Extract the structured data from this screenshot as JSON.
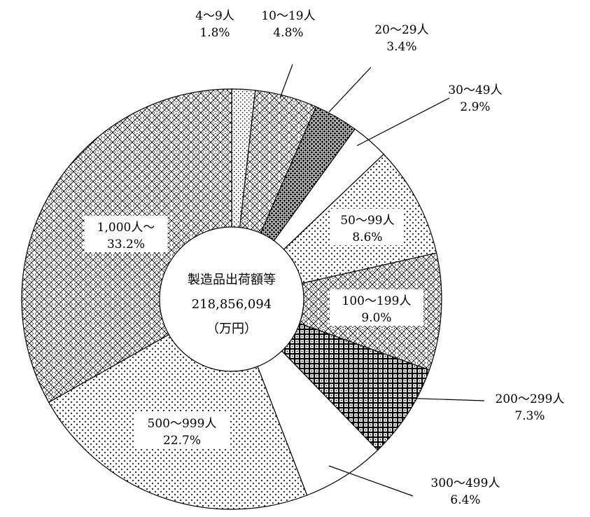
{
  "chart_data": {
    "type": "pie",
    "variant": "donut",
    "center_label": {
      "title": "製造品出荷額等",
      "value": "218,856,094",
      "unit": "（万円）"
    },
    "slices": [
      {
        "name": "4～9人",
        "value": 1.8,
        "label": "1.8%",
        "pattern": "dots-sparse"
      },
      {
        "name": "10～19人",
        "value": 4.8,
        "label": "4.8%",
        "pattern": "diamond"
      },
      {
        "name": "20～29人",
        "value": 3.4,
        "label": "3.4%",
        "pattern": "dots-dense"
      },
      {
        "name": "30～49人",
        "value": 2.9,
        "label": "2.9%",
        "pattern": "white"
      },
      {
        "name": "50～99人",
        "value": 8.6,
        "label": "8.6%",
        "pattern": "cross-small"
      },
      {
        "name": "100～199人",
        "value": 9.0,
        "label": "9.0%",
        "pattern": "diamond"
      },
      {
        "name": "200～299人",
        "value": 7.3,
        "label": "7.3%",
        "pattern": "grid-dense"
      },
      {
        "name": "300～499人",
        "value": 6.4,
        "label": "6.4%",
        "pattern": "white"
      },
      {
        "name": "500～999人",
        "value": 22.7,
        "label": "22.7%",
        "pattern": "cross-small"
      },
      {
        "name": "1,000人～",
        "value": 33.2,
        "label": "33.2%",
        "pattern": "diamond"
      }
    ],
    "start_angle_deg": 0,
    "direction": "clockwise"
  }
}
